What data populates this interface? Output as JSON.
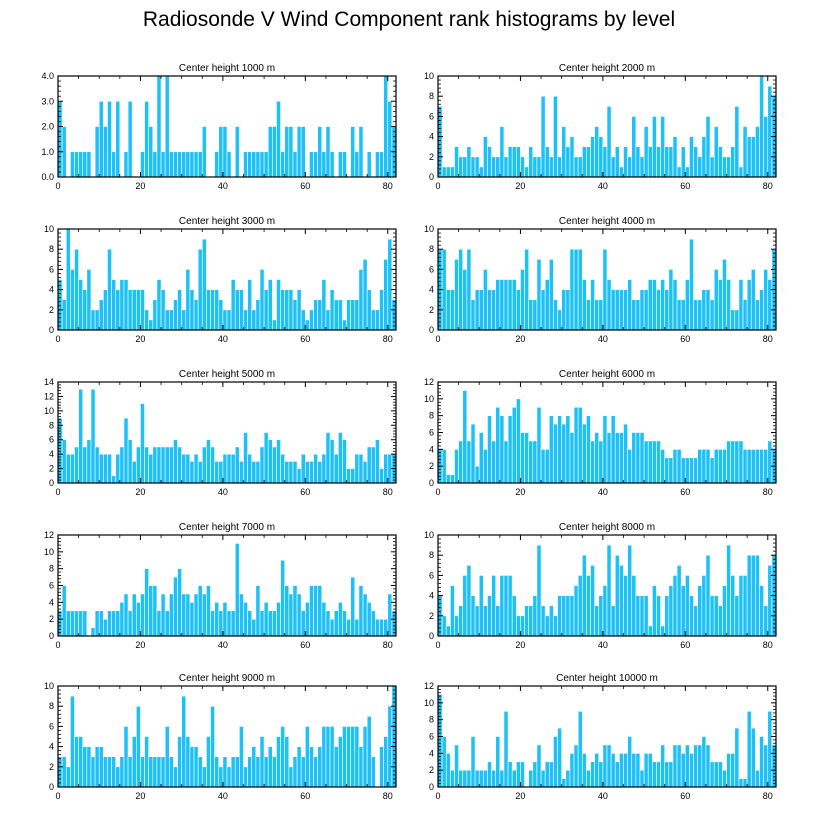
{
  "title": "Radiosonde V Wind Component rank histograms by level",
  "bar_color": "#1ec1f6",
  "chart_data": [
    {
      "type": "bar",
      "title": "Center height 1000 m",
      "xlim": [
        0,
        82
      ],
      "ylim": [
        0,
        4
      ],
      "xticks": [
        0,
        20,
        40,
        60,
        80
      ],
      "yticks": [
        0,
        1,
        2,
        3,
        4
      ],
      "ytick_labels": [
        "0.0",
        "1.0",
        "2.0",
        "3.0",
        "4.0"
      ],
      "values": [
        3,
        2,
        0,
        1,
        1,
        1,
        1,
        1,
        0,
        2,
        3,
        2,
        3,
        1,
        3,
        0,
        1,
        3,
        0,
        0,
        1,
        3,
        2,
        1,
        4,
        1,
        4,
        1,
        1,
        1,
        1,
        1,
        1,
        1,
        1,
        2,
        0,
        0,
        1,
        2,
        2,
        1,
        0,
        2,
        0,
        1,
        1,
        1,
        1,
        1,
        1,
        2,
        2,
        3,
        1,
        2,
        2,
        1,
        2,
        2,
        0,
        1,
        1,
        2,
        1,
        2,
        1,
        0,
        1,
        1,
        0,
        2,
        1,
        2,
        0,
        1,
        0,
        1,
        1,
        4,
        3,
        2
      ]
    },
    {
      "type": "bar",
      "title": "Center height 2000 m",
      "xlim": [
        0,
        82
      ],
      "ylim": [
        0,
        10
      ],
      "xticks": [
        0,
        20,
        40,
        60,
        80
      ],
      "yticks": [
        0,
        2,
        4,
        6,
        8,
        10
      ],
      "ytick_labels": [
        "0",
        "2",
        "4",
        "6",
        "8",
        "10"
      ],
      "values": [
        7,
        1,
        1,
        1,
        3,
        2,
        2,
        3,
        2,
        2,
        1,
        4,
        3,
        2,
        2,
        5,
        2,
        3,
        3,
        3,
        2,
        1,
        3,
        2,
        2,
        8,
        3,
        2,
        8,
        2,
        5,
        3,
        4,
        2,
        2,
        3,
        3,
        4,
        5,
        4,
        3,
        7,
        2,
        3,
        1,
        3,
        2,
        6,
        3,
        2,
        5,
        3,
        6,
        3,
        6,
        3,
        3,
        4,
        1,
        3,
        1,
        4,
        3,
        2,
        4,
        6,
        2,
        5,
        3,
        2,
        2,
        3,
        7,
        1,
        5,
        4,
        4,
        5,
        10,
        6,
        9,
        8
      ]
    },
    {
      "type": "bar",
      "title": "Center height 3000 m",
      "xlim": [
        0,
        82
      ],
      "ylim": [
        0,
        10
      ],
      "xticks": [
        0,
        20,
        40,
        60,
        80
      ],
      "yticks": [
        0,
        2,
        4,
        6,
        8,
        10
      ],
      "ytick_labels": [
        "0",
        "2",
        "4",
        "6",
        "8",
        "10"
      ],
      "values": [
        5,
        3,
        10,
        6,
        8,
        5,
        4,
        6,
        2,
        2,
        3,
        4,
        8,
        5,
        4,
        5,
        5,
        4,
        4,
        4,
        4,
        2,
        1,
        3,
        5,
        4,
        2,
        2,
        3,
        4,
        2,
        6,
        4,
        3,
        8,
        9,
        4,
        4,
        4,
        3,
        2,
        2,
        5,
        4,
        4,
        2,
        5,
        2,
        3,
        6,
        4,
        5,
        1,
        5,
        4,
        4,
        4,
        3,
        4,
        2,
        1,
        2,
        3,
        3,
        5,
        2,
        4,
        3,
        3,
        1,
        3,
        3,
        3,
        6,
        7,
        4,
        2,
        2,
        4,
        7,
        9,
        3
      ]
    },
    {
      "type": "bar",
      "title": "Center height 4000 m",
      "xlim": [
        0,
        82
      ],
      "ylim": [
        0,
        10
      ],
      "xticks": [
        0,
        20,
        40,
        60,
        80
      ],
      "yticks": [
        0,
        2,
        4,
        6,
        8,
        10
      ],
      "ytick_labels": [
        "0",
        "2",
        "4",
        "6",
        "8",
        "10"
      ],
      "values": [
        8,
        8,
        4,
        4,
        7,
        8,
        6,
        8,
        3,
        4,
        4,
        6,
        4,
        4,
        5,
        5,
        5,
        5,
        5,
        4,
        6,
        8,
        3,
        3,
        7,
        4,
        5,
        7,
        3,
        2,
        4,
        4,
        8,
        8,
        8,
        5,
        3,
        5,
        3,
        3,
        8,
        5,
        4,
        4,
        4,
        4,
        5,
        3,
        3,
        4,
        4,
        5,
        5,
        4,
        5,
        4,
        6,
        5,
        3,
        3,
        5,
        9,
        3,
        3,
        4,
        4,
        3,
        6,
        5,
        7,
        5,
        2,
        2,
        5,
        3,
        5,
        6,
        3,
        4,
        6,
        5,
        8
      ]
    },
    {
      "type": "bar",
      "title": "Center height 5000 m",
      "xlim": [
        0,
        82
      ],
      "ylim": [
        0,
        14
      ],
      "xticks": [
        0,
        20,
        40,
        60,
        80
      ],
      "yticks": [
        0,
        2,
        4,
        6,
        8,
        10,
        12,
        14
      ],
      "ytick_labels": [
        "0",
        "2",
        "4",
        "6",
        "8",
        "10",
        "12",
        "14"
      ],
      "values": [
        9,
        6,
        4,
        4,
        5,
        13,
        5,
        6,
        13,
        5,
        4,
        4,
        4,
        1,
        4,
        5,
        9,
        6,
        3,
        5,
        11,
        5,
        4,
        5,
        5,
        5,
        5,
        5,
        6,
        5,
        4,
        4,
        3,
        4,
        3,
        5,
        6,
        5,
        3,
        3,
        4,
        4,
        4,
        5,
        3,
        7,
        4,
        3,
        3,
        5,
        7,
        6,
        5,
        6,
        4,
        3,
        3,
        3,
        2,
        4,
        3,
        3,
        4,
        3,
        4,
        7,
        6,
        4,
        7,
        6,
        2,
        2,
        4,
        4,
        3,
        5,
        5,
        6,
        2,
        4,
        4,
        4
      ]
    },
    {
      "type": "bar",
      "title": "Center height 6000 m",
      "xlim": [
        0,
        82
      ],
      "ylim": [
        0,
        12
      ],
      "xticks": [
        0,
        20,
        40,
        60,
        80
      ],
      "yticks": [
        0,
        2,
        4,
        6,
        8,
        10,
        12
      ],
      "ytick_labels": [
        "0",
        "2",
        "4",
        "6",
        "8",
        "10",
        "12"
      ],
      "values": [
        4,
        4,
        1,
        1,
        4,
        5,
        11,
        5,
        7,
        2,
        6,
        4,
        8,
        5,
        9,
        8,
        5,
        8,
        9,
        10,
        6,
        6,
        5,
        5,
        9,
        4,
        4,
        8,
        7,
        8,
        7,
        8,
        6,
        9,
        9,
        7,
        8,
        5,
        6,
        5,
        8,
        6,
        8,
        6,
        6,
        7,
        4,
        6,
        6,
        6,
        5,
        5,
        5,
        5,
        4,
        3,
        3,
        4,
        4,
        3,
        3,
        3,
        3,
        4,
        4,
        4,
        3,
        4,
        4,
        4,
        5,
        5,
        5,
        5,
        4,
        4,
        4,
        4,
        4,
        4,
        5,
        4
      ]
    },
    {
      "type": "bar",
      "title": "Center height 7000 m",
      "xlim": [
        0,
        82
      ],
      "ylim": [
        0,
        12
      ],
      "xticks": [
        0,
        20,
        40,
        60,
        80
      ],
      "yticks": [
        0,
        2,
        4,
        6,
        8,
        10,
        12
      ],
      "ytick_labels": [
        "0",
        "2",
        "4",
        "6",
        "8",
        "10",
        "12"
      ],
      "values": [
        3,
        6,
        3,
        3,
        3,
        3,
        3,
        0,
        1,
        3,
        3,
        2,
        3,
        3,
        3,
        4,
        5,
        3,
        5,
        4,
        5,
        8,
        6,
        6,
        3,
        5,
        3,
        5,
        7,
        8,
        5,
        5,
        4,
        5,
        6,
        5,
        6,
        3,
        4,
        3,
        4,
        3,
        3,
        11,
        5,
        4,
        3,
        2,
        6,
        3,
        4,
        3,
        3,
        4,
        9,
        6,
        5,
        6,
        5,
        3,
        4,
        6,
        6,
        6,
        4,
        3,
        2,
        3,
        4,
        3,
        2,
        7,
        2,
        6,
        5,
        4,
        3,
        2,
        2,
        2,
        5,
        3
      ]
    },
    {
      "type": "bar",
      "title": "Center height 8000 m",
      "xlim": [
        0,
        82
      ],
      "ylim": [
        0,
        10
      ],
      "xticks": [
        0,
        20,
        40,
        60,
        80
      ],
      "yticks": [
        0,
        2,
        4,
        6,
        8,
        10
      ],
      "ytick_labels": [
        "0",
        "2",
        "4",
        "6",
        "8",
        "10"
      ],
      "values": [
        4,
        2,
        1,
        5,
        2,
        3,
        6,
        7,
        4,
        3,
        6,
        3,
        4,
        6,
        3,
        6,
        6,
        6,
        4,
        2,
        2,
        3,
        3,
        4,
        9,
        3,
        2,
        3,
        2,
        4,
        4,
        4,
        4,
        5,
        6,
        8,
        6,
        7,
        3,
        4,
        5,
        9,
        3,
        8,
        7,
        6,
        9,
        6,
        4,
        4,
        4,
        1,
        5,
        4,
        1,
        4,
        5,
        6,
        7,
        5,
        6,
        4,
        3,
        5,
        6,
        8,
        4,
        4,
        3,
        5,
        9,
        6,
        4,
        6,
        6,
        8,
        8,
        8,
        5,
        3,
        7,
        8
      ]
    },
    {
      "type": "bar",
      "title": "Center height 9000 m",
      "xlim": [
        0,
        82
      ],
      "ylim": [
        0,
        10
      ],
      "xticks": [
        0,
        20,
        40,
        60,
        80
      ],
      "yticks": [
        0,
        2,
        4,
        6,
        8,
        10
      ],
      "ytick_labels": [
        "0",
        "2",
        "4",
        "6",
        "8",
        "10"
      ],
      "values": [
        3,
        3,
        2,
        9,
        5,
        5,
        4,
        4,
        3,
        4,
        4,
        3,
        3,
        3,
        2,
        3,
        6,
        3,
        5,
        8,
        3,
        5,
        3,
        3,
        3,
        3,
        6,
        3,
        2,
        5,
        9,
        5,
        4,
        4,
        3,
        2,
        5,
        8,
        3,
        2,
        3,
        2,
        3,
        3,
        6,
        2,
        3,
        4,
        3,
        5,
        3,
        4,
        3,
        5,
        6,
        5,
        2,
        3,
        4,
        3,
        6,
        4,
        3,
        4,
        6,
        6,
        6,
        4,
        5,
        6,
        6,
        6,
        6,
        4,
        6,
        7,
        3,
        0,
        4,
        5,
        8,
        10
      ]
    },
    {
      "type": "bar",
      "title": "Center height 10000 m",
      "xlim": [
        0,
        82
      ],
      "ylim": [
        0,
        12
      ],
      "xticks": [
        0,
        20,
        40,
        60,
        80
      ],
      "yticks": [
        0,
        2,
        4,
        6,
        8,
        10,
        12
      ],
      "ytick_labels": [
        "0",
        "2",
        "4",
        "6",
        "8",
        "10",
        "12"
      ],
      "values": [
        11,
        6,
        4,
        2,
        5,
        2,
        2,
        2,
        6,
        2,
        2,
        2,
        3,
        2,
        6,
        2,
        9,
        3,
        2,
        3,
        3,
        0,
        2,
        3,
        5,
        2,
        3,
        3,
        6,
        7,
        1,
        2,
        4,
        5,
        9,
        4,
        2,
        3,
        4,
        3,
        5,
        5,
        4,
        3,
        4,
        4,
        6,
        4,
        4,
        2,
        4,
        4,
        3,
        3,
        5,
        3,
        3,
        5,
        5,
        4,
        5,
        4,
        5,
        5,
        6,
        5,
        3,
        3,
        3,
        2,
        4,
        4,
        7,
        1,
        1,
        9,
        7,
        2,
        6,
        5,
        9,
        5
      ]
    }
  ]
}
